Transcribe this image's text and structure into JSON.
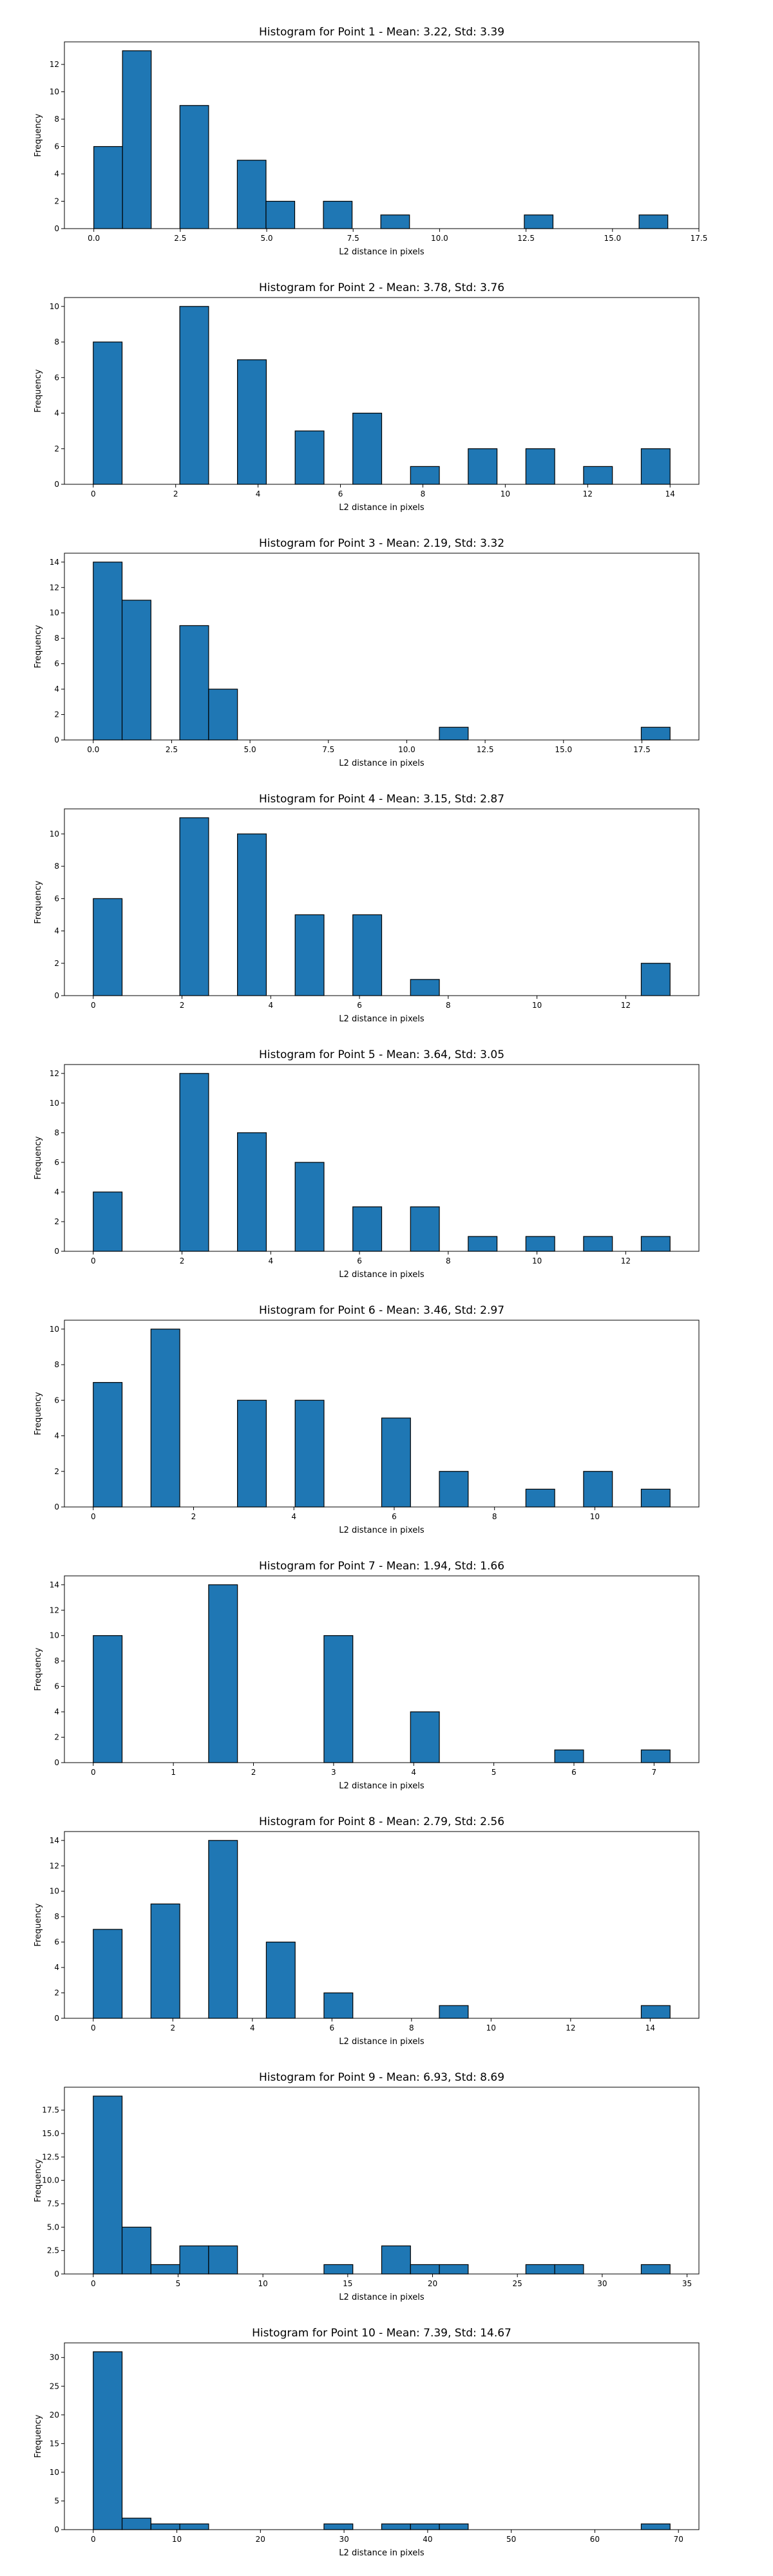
{
  "chart_data": [
    {
      "type": "bar",
      "title": "Histogram for Point 1 - Mean: 3.22, Std: 3.39",
      "xlabel": "L2 distance in pixels",
      "ylabel": "Frequency",
      "xlim": [
        -0.85,
        17.5
      ],
      "ylim": [
        0,
        13.65
      ],
      "xticks": [
        0.0,
        2.5,
        5.0,
        7.5,
        10.0,
        12.5,
        15.0,
        17.5
      ],
      "xtick_labels": [
        "0.0",
        "2.5",
        "5.0",
        "7.5",
        "10.0",
        "12.5",
        "15.0",
        "17.5"
      ],
      "yticks": [
        0,
        2,
        4,
        6,
        8,
        10,
        12
      ],
      "ytick_labels": [
        "0",
        "2",
        "4",
        "6",
        "8",
        "10",
        "12"
      ],
      "bin_edges": [
        0.0,
        0.83,
        1.66,
        2.49,
        3.32,
        4.15,
        4.98,
        5.81,
        6.64,
        7.47,
        8.3,
        9.13,
        9.96,
        10.79,
        11.62,
        12.45,
        13.28,
        14.11,
        14.94,
        15.77,
        16.6
      ],
      "values": [
        6,
        13,
        0,
        9,
        0,
        5,
        2,
        0,
        2,
        0,
        1,
        0,
        0,
        0,
        0,
        1,
        0,
        0,
        0,
        1
      ],
      "grid": false
    },
    {
      "type": "bar",
      "title": "Histogram for Point 2 - Mean: 3.78, Std: 3.76",
      "xlabel": "L2 distance in pixels",
      "ylabel": "Frequency",
      "xlim": [
        -0.7,
        14.7
      ],
      "ylim": [
        0,
        10.5
      ],
      "xticks": [
        0,
        2,
        4,
        6,
        8,
        10,
        12,
        14
      ],
      "xtick_labels": [
        "0",
        "2",
        "4",
        "6",
        "8",
        "10",
        "12",
        "14"
      ],
      "yticks": [
        0,
        2,
        4,
        6,
        8,
        10
      ],
      "ytick_labels": [
        "0",
        "2",
        "4",
        "6",
        "8",
        "10"
      ],
      "bin_edges": [
        0.0,
        0.7,
        1.4,
        2.1,
        2.8,
        3.5,
        4.2,
        4.9,
        5.6,
        6.3,
        7.0,
        7.7,
        8.4,
        9.1,
        9.8,
        10.5,
        11.2,
        11.9,
        12.6,
        13.3,
        14.0
      ],
      "values": [
        8,
        0,
        0,
        10,
        0,
        7,
        0,
        3,
        0,
        4,
        0,
        1,
        0,
        2,
        0,
        2,
        0,
        1,
        0,
        2
      ],
      "grid": false
    },
    {
      "type": "bar",
      "title": "Histogram for Point 3 - Mean: 2.19, Std: 3.32",
      "xlabel": "L2 distance in pixels",
      "ylabel": "Frequency",
      "xlim": [
        -0.92,
        19.32
      ],
      "ylim": [
        0,
        14.7
      ],
      "xticks": [
        0.0,
        2.5,
        5.0,
        7.5,
        10.0,
        12.5,
        15.0,
        17.5
      ],
      "xtick_labels": [
        "0.0",
        "2.5",
        "5.0",
        "7.5",
        "10.0",
        "12.5",
        "15.0",
        "17.5"
      ],
      "yticks": [
        0,
        2,
        4,
        6,
        8,
        10,
        12,
        14
      ],
      "ytick_labels": [
        "0",
        "2",
        "4",
        "6",
        "8",
        "10",
        "12",
        "14"
      ],
      "bin_edges": [
        0.0,
        0.92,
        1.84,
        2.76,
        3.68,
        4.6,
        5.52,
        6.44,
        7.36,
        8.28,
        9.2,
        10.12,
        11.04,
        11.96,
        12.88,
        13.8,
        14.72,
        15.64,
        16.56,
        17.48,
        18.4
      ],
      "values": [
        14,
        11,
        0,
        9,
        4,
        0,
        0,
        0,
        0,
        0,
        0,
        0,
        1,
        0,
        0,
        0,
        0,
        0,
        0,
        1
      ],
      "grid": false
    },
    {
      "type": "bar",
      "title": "Histogram for Point 4 - Mean: 3.15, Std: 2.87",
      "xlabel": "L2 distance in pixels",
      "ylabel": "Frequency",
      "xlim": [
        -0.65,
        13.65
      ],
      "ylim": [
        0,
        11.55
      ],
      "xticks": [
        0,
        2,
        4,
        6,
        8,
        10,
        12
      ],
      "xtick_labels": [
        "0",
        "2",
        "4",
        "6",
        "8",
        "10",
        "12"
      ],
      "yticks": [
        0,
        2,
        4,
        6,
        8,
        10
      ],
      "ytick_labels": [
        "0",
        "2",
        "4",
        "6",
        "8",
        "10"
      ],
      "bin_edges": [
        0.0,
        0.65,
        1.3,
        1.95,
        2.6,
        3.25,
        3.9,
        4.55,
        5.2,
        5.85,
        6.5,
        7.15,
        7.8,
        8.45,
        9.1,
        9.75,
        10.4,
        11.05,
        11.7,
        12.35,
        13.0
      ],
      "values": [
        6,
        0,
        0,
        11,
        0,
        10,
        0,
        5,
        0,
        5,
        0,
        1,
        0,
        0,
        0,
        0,
        0,
        0,
        0,
        2
      ],
      "grid": false
    },
    {
      "type": "bar",
      "title": "Histogram for Point 5 - Mean: 3.64, Std: 3.05",
      "xlabel": "L2 distance in pixels",
      "ylabel": "Frequency",
      "xlim": [
        -0.65,
        13.65
      ],
      "ylim": [
        0,
        12.6
      ],
      "xticks": [
        0,
        2,
        4,
        6,
        8,
        10,
        12
      ],
      "xtick_labels": [
        "0",
        "2",
        "4",
        "6",
        "8",
        "10",
        "12"
      ],
      "yticks": [
        0,
        2,
        4,
        6,
        8,
        10,
        12
      ],
      "ytick_labels": [
        "0",
        "2",
        "4",
        "6",
        "8",
        "10",
        "12"
      ],
      "bin_edges": [
        0.0,
        0.65,
        1.3,
        1.95,
        2.6,
        3.25,
        3.9,
        4.55,
        5.2,
        5.85,
        6.5,
        7.15,
        7.8,
        8.45,
        9.1,
        9.75,
        10.4,
        11.05,
        11.7,
        12.35,
        13.0
      ],
      "values": [
        4,
        0,
        0,
        12,
        0,
        8,
        0,
        6,
        0,
        3,
        0,
        3,
        0,
        1,
        0,
        1,
        0,
        1,
        0,
        1
      ],
      "grid": false
    },
    {
      "type": "bar",
      "title": "Histogram for Point 6 - Mean: 3.46, Std: 2.97",
      "xlabel": "L2 distance in pixels",
      "ylabel": "Frequency",
      "xlim": [
        -0.575,
        12.075
      ],
      "ylim": [
        0,
        10.5
      ],
      "xticks": [
        0,
        2,
        4,
        6,
        8,
        10
      ],
      "xtick_labels": [
        "0",
        "2",
        "4",
        "6",
        "8",
        "10"
      ],
      "yticks": [
        0,
        2,
        4,
        6,
        8,
        10
      ],
      "ytick_labels": [
        "0",
        "2",
        "4",
        "6",
        "8",
        "10"
      ],
      "bin_edges": [
        0.0,
        0.575,
        1.15,
        1.725,
        2.3,
        2.875,
        3.45,
        4.025,
        4.6,
        5.175,
        5.75,
        6.325,
        6.9,
        7.475,
        8.05,
        8.625,
        9.2,
        9.775,
        10.35,
        10.925,
        11.5
      ],
      "values": [
        7,
        0,
        10,
        0,
        0,
        6,
        0,
        6,
        0,
        0,
        5,
        0,
        2,
        0,
        0,
        1,
        0,
        2,
        0,
        1
      ],
      "grid": false
    },
    {
      "type": "bar",
      "title": "Histogram for Point 7 - Mean: 1.94, Std: 1.66",
      "xlabel": "L2 distance in pixels",
      "ylabel": "Frequency",
      "xlim": [
        -0.36,
        7.56
      ],
      "ylim": [
        0,
        14.7
      ],
      "xticks": [
        0,
        1,
        2,
        3,
        4,
        5,
        6,
        7
      ],
      "xtick_labels": [
        "0",
        "1",
        "2",
        "3",
        "4",
        "5",
        "6",
        "7"
      ],
      "yticks": [
        0,
        2,
        4,
        6,
        8,
        10,
        12,
        14
      ],
      "ytick_labels": [
        "0",
        "2",
        "4",
        "6",
        "8",
        "10",
        "12",
        "14"
      ],
      "bin_edges": [
        0.0,
        0.36,
        0.72,
        1.08,
        1.44,
        1.8,
        2.16,
        2.52,
        2.88,
        3.24,
        3.6,
        3.96,
        4.32,
        4.68,
        5.04,
        5.4,
        5.76,
        6.12,
        6.48,
        6.84,
        7.2
      ],
      "values": [
        10,
        0,
        0,
        0,
        14,
        0,
        0,
        0,
        10,
        0,
        0,
        4,
        0,
        0,
        0,
        0,
        1,
        0,
        0,
        1
      ],
      "grid": false
    },
    {
      "type": "bar",
      "title": "Histogram for Point 8 - Mean: 2.79, Std: 2.56",
      "xlabel": "L2 distance in pixels",
      "ylabel": "Frequency",
      "xlim": [
        -0.725,
        15.225
      ],
      "ylim": [
        0,
        14.7
      ],
      "xticks": [
        0,
        2,
        4,
        6,
        8,
        10,
        12,
        14
      ],
      "xtick_labels": [
        "0",
        "2",
        "4",
        "6",
        "8",
        "10",
        "12",
        "14"
      ],
      "yticks": [
        0,
        2,
        4,
        6,
        8,
        10,
        12,
        14
      ],
      "ytick_labels": [
        "0",
        "2",
        "4",
        "6",
        "8",
        "10",
        "12",
        "14"
      ],
      "bin_edges": [
        0.0,
        0.725,
        1.45,
        2.175,
        2.9,
        3.625,
        4.35,
        5.075,
        5.8,
        6.525,
        7.25,
        7.975,
        8.7,
        9.425,
        10.15,
        10.875,
        11.6,
        12.325,
        13.05,
        13.775,
        14.5
      ],
      "values": [
        7,
        0,
        9,
        0,
        14,
        0,
        6,
        0,
        2,
        0,
        0,
        0,
        1,
        0,
        0,
        0,
        0,
        0,
        0,
        1
      ],
      "grid": false
    },
    {
      "type": "bar",
      "title": "Histogram for Point 9 - Mean: 6.93, Std: 8.69",
      "xlabel": "L2 distance in pixels",
      "ylabel": "Frequency",
      "xlim": [
        -1.7,
        35.7
      ],
      "ylim": [
        0,
        19.95
      ],
      "xticks": [
        0,
        5,
        10,
        15,
        20,
        25,
        30,
        35
      ],
      "xtick_labels": [
        "0",
        "5",
        "10",
        "15",
        "20",
        "25",
        "30",
        "35"
      ],
      "yticks": [
        0,
        2.5,
        5.0,
        7.5,
        10.0,
        12.5,
        15.0,
        17.5
      ],
      "ytick_labels": [
        "0",
        "2.5",
        "5.0",
        "7.5",
        "10.0",
        "12.5",
        "15.0",
        "17.5"
      ],
      "bin_edges": [
        0.0,
        1.7,
        3.4,
        5.1,
        6.8,
        8.5,
        10.2,
        11.9,
        13.6,
        15.3,
        17.0,
        18.7,
        20.4,
        22.1,
        23.8,
        25.5,
        27.2,
        28.9,
        30.6,
        32.3,
        34.0
      ],
      "values": [
        19,
        5,
        1,
        3,
        3,
        0,
        0,
        0,
        1,
        0,
        3,
        1,
        1,
        0,
        0,
        1,
        1,
        0,
        0,
        1
      ],
      "grid": false
    },
    {
      "type": "bar",
      "title": "Histogram for Point 10 - Mean: 7.39, Std: 14.67",
      "xlabel": "L2 distance in pixels",
      "ylabel": "Frequency",
      "xlim": [
        -3.45,
        72.45
      ],
      "ylim": [
        0,
        32.55
      ],
      "xticks": [
        0,
        10,
        20,
        30,
        40,
        50,
        60,
        70
      ],
      "xtick_labels": [
        "0",
        "10",
        "20",
        "30",
        "40",
        "50",
        "60",
        "70"
      ],
      "yticks": [
        0,
        5,
        10,
        15,
        20,
        25,
        30
      ],
      "ytick_labels": [
        "0",
        "5",
        "10",
        "15",
        "20",
        "25",
        "30"
      ],
      "bin_edges": [
        0.0,
        3.45,
        6.9,
        10.35,
        13.8,
        17.25,
        20.7,
        24.15,
        27.6,
        31.05,
        34.5,
        37.95,
        41.4,
        44.85,
        48.3,
        51.75,
        55.2,
        58.65,
        62.1,
        65.55,
        69.0
      ],
      "values": [
        31,
        2,
        1,
        1,
        0,
        0,
        0,
        0,
        1,
        0,
        1,
        1,
        1,
        0,
        0,
        0,
        0,
        0,
        0,
        1
      ],
      "grid": false
    }
  ],
  "colors": {
    "bar_fill": "#1f77b4",
    "bar_edge": "#000000",
    "axis": "#000000",
    "background": "#ffffff"
  }
}
